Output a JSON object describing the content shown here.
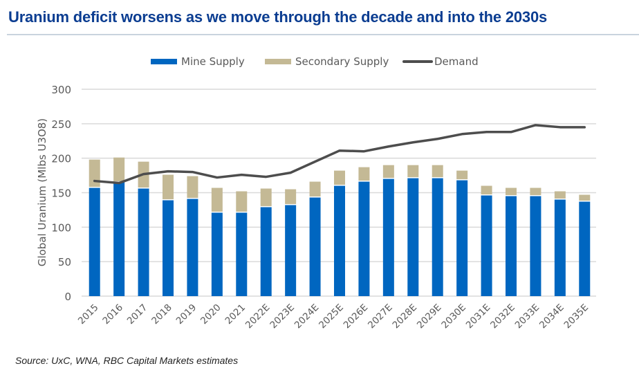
{
  "header": {
    "title": "Uranium deficit worsens as we move through the decade and into the 2030s"
  },
  "footer": {
    "source": "Source: UxC, WNA, RBC Capital Markets estimates"
  },
  "colors": {
    "title": "#0b3d91",
    "mine_supply": "#0066c0",
    "secondary_supply": "#c4b995",
    "demand": "#4d4d4d",
    "grid": "#d9d9d9",
    "axis_text": "#595959"
  },
  "chart_data": {
    "type": "bar",
    "stacked": true,
    "title": "Uranium deficit worsens as we move through the decade and into the 2030s",
    "xlabel": "",
    "ylabel": "Global Uranium (Mlbs U3O8)",
    "ylim": [
      0,
      300
    ],
    "yticks": [
      0,
      50,
      100,
      150,
      200,
      250,
      300
    ],
    "grid": true,
    "legend_position": "top-center",
    "categories": [
      "2015",
      "2016",
      "2017",
      "2018",
      "2019",
      "2020",
      "2021",
      "2022E",
      "2023E",
      "2024E",
      "2025E",
      "2026E",
      "2027E",
      "2028E",
      "2029E",
      "2030E",
      "2031E",
      "2032E",
      "2033E",
      "2034E",
      "2035E"
    ],
    "series": [
      {
        "name": "Mine Supply",
        "type": "bar",
        "values": [
          157,
          165,
          156,
          139,
          141,
          121,
          121,
          129,
          132,
          143,
          160,
          166,
          170,
          171,
          171,
          168,
          146,
          145,
          145,
          140,
          137
        ]
      },
      {
        "name": "Secondary Supply",
        "type": "bar",
        "values": [
          41,
          36,
          39,
          37,
          33,
          36,
          31,
          27,
          23,
          23,
          22,
          21,
          20,
          19,
          19,
          14,
          14,
          12,
          12,
          12,
          10
        ]
      },
      {
        "name": "Demand",
        "type": "line",
        "values": [
          167,
          164,
          177,
          181,
          180,
          172,
          176,
          173,
          179,
          195,
          211,
          210,
          217,
          223,
          228,
          235,
          238,
          238,
          248,
          245,
          245
        ]
      }
    ]
  }
}
